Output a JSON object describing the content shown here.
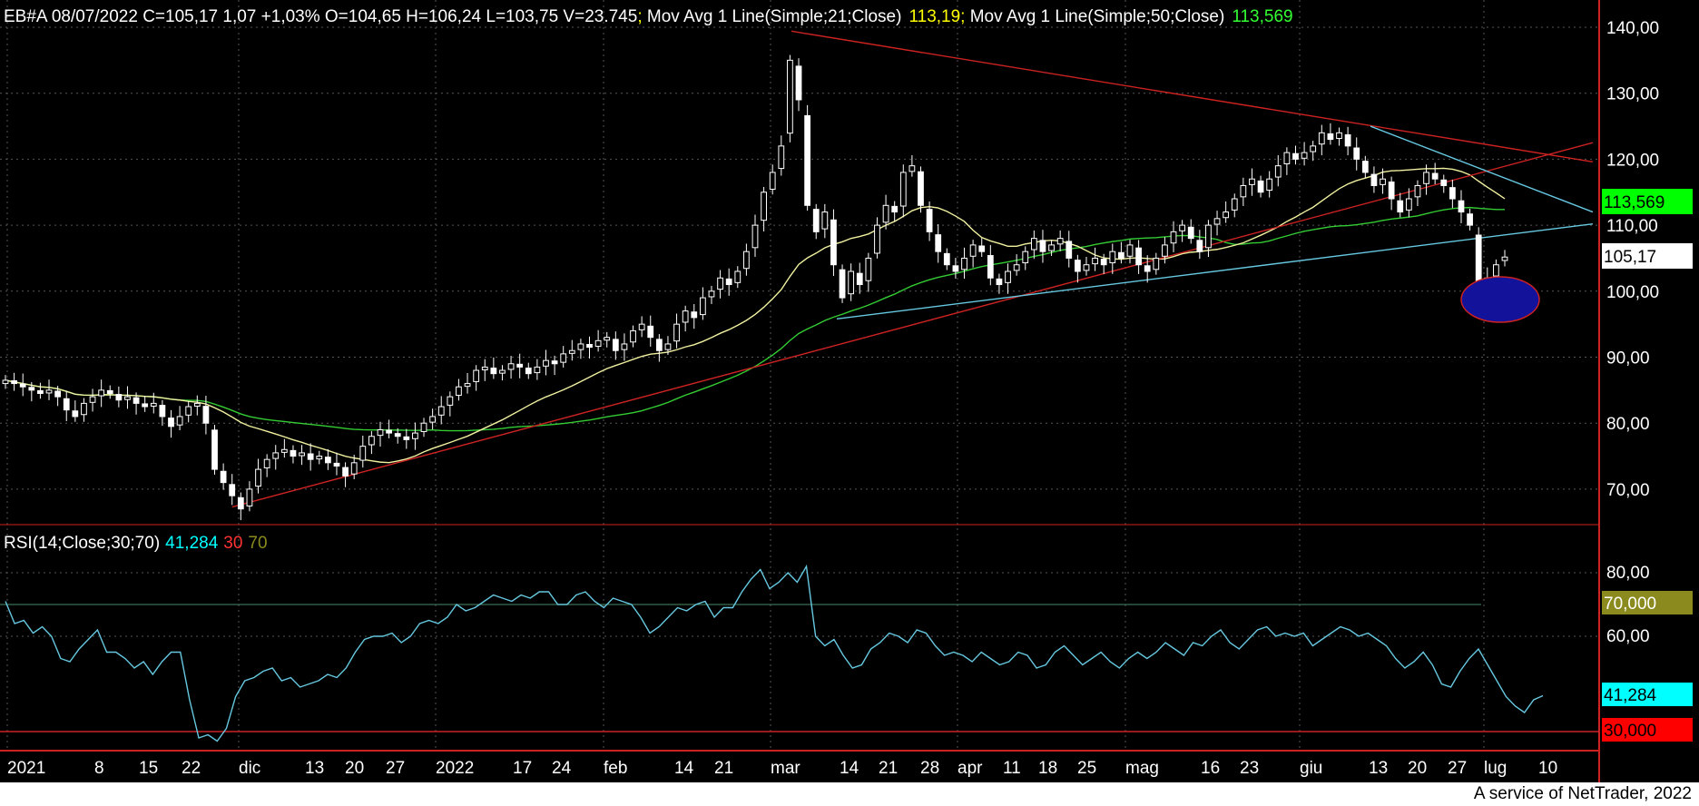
{
  "header": {
    "symbol_line": "EB#A 08/07/2022 C=105,17 1,07 +1,03% O=104,65 H=106,24 L=103,75 V=23.745",
    "sep1": "; ",
    "ma21_label": "Mov Avg 1 Line(Simple;21;Close)",
    "ma21_value": "113,19",
    "sep2": "; ",
    "ma50_label": "Mov Avg 1 Line(Simple;50;Close)",
    "ma50_value": "113,569"
  },
  "rsi_header": {
    "label": "RSI(14;Close;30;70)",
    "value": "41,284",
    "lower": "30",
    "upper": "70"
  },
  "price_axis": {
    "ticks": [
      "140,00",
      "130,00",
      "120,00",
      "110,00",
      "100,00",
      "90,00",
      "80,00",
      "70,00"
    ],
    "ma50_box": "113,569",
    "close_box": "105,17"
  },
  "rsi_axis": {
    "ticks": [
      "80,00",
      "60,00"
    ],
    "upper_box": "70,000",
    "value_box": "41,284",
    "lower_box": "30,000"
  },
  "date_axis": [
    "2021",
    "8",
    "15",
    "22",
    "dic",
    "13",
    "20",
    "27",
    "2022",
    "17",
    "24",
    "feb",
    "14",
    "21",
    "mar",
    "14",
    "21",
    "28",
    "apr",
    "11",
    "18",
    "25",
    "mag",
    "16",
    "23",
    "giu",
    "13",
    "20",
    "27",
    "lug",
    "10"
  ],
  "footer": "A service of NetTrader, 2022",
  "colors": {
    "background": "#000000",
    "candle": "#ffffff",
    "ma21": "#f0f0a0",
    "ma50": "#33cc33",
    "trend_red": "#cc2222",
    "trend_cyan": "#66c8e0",
    "rsi": "#66c8e0",
    "rsi_upper": "#8a8a1e",
    "rsi_lower": "#ff0000",
    "ma50_box": "#00ff00",
    "rsi_value_box": "#00ffff",
    "highlight_ellipse": "#12129a"
  },
  "chart_data": [
    {
      "type": "candlestick",
      "title": "EB#A",
      "ylim": [
        64,
        142
      ],
      "y_ticks": [
        70,
        80,
        90,
        100,
        110,
        120,
        130,
        140
      ],
      "grid": true,
      "last": {
        "date": "08/07/2022",
        "open": 104.65,
        "high": 106.24,
        "low": 103.75,
        "close": 105.17,
        "volume": 23745
      },
      "close_series": [
        86.5,
        86,
        85.5,
        85,
        84.5,
        85,
        84,
        82,
        81,
        83,
        84,
        85,
        84.5,
        83.5,
        84,
        83,
        82.5,
        83,
        81,
        79.5,
        81,
        82.5,
        83,
        80,
        73,
        71,
        69,
        67,
        70,
        73,
        74.5,
        75.5,
        76,
        75,
        75.5,
        74.5,
        75,
        74,
        73.5,
        72,
        74,
        76.5,
        78,
        79,
        78.5,
        78,
        77.5,
        78.5,
        80,
        81,
        82.5,
        84,
        85.5,
        86,
        88,
        88.5,
        87.5,
        88,
        89,
        88.5,
        87.5,
        88.5,
        89.5,
        89,
        90.5,
        91,
        92,
        91.5,
        92.5,
        93,
        91,
        92,
        94,
        95,
        93,
        91,
        92,
        95,
        97,
        96,
        99,
        100,
        102,
        101,
        103,
        106,
        110,
        115,
        118,
        122,
        135,
        129,
        113,
        109,
        112,
        104,
        99,
        103,
        101,
        105,
        110,
        113,
        112,
        118,
        119,
        113,
        109,
        106,
        104,
        103,
        105,
        107,
        106,
        102,
        101,
        103,
        104,
        106,
        108,
        106,
        107,
        108,
        105,
        103,
        104,
        105,
        104,
        106,
        105,
        107,
        104,
        103,
        105,
        107,
        109,
        110,
        108,
        106,
        110,
        111,
        112,
        114,
        116,
        117,
        115,
        117,
        119,
        121,
        120,
        121,
        122,
        124,
        123,
        124,
        122,
        120,
        118,
        116,
        117,
        114,
        112,
        114,
        116,
        118,
        117,
        116,
        114,
        112,
        110,
        100,
        102,
        104,
        105.17
      ],
      "ma21_last": 113.19,
      "ma50_last": 113.569,
      "annotations": [
        "red upper trendline",
        "red lower trendline",
        "cyan support trendline",
        "cyan descending trendline",
        "blue ellipse highlight"
      ]
    },
    {
      "type": "line",
      "title": "RSI(14;Close;30;70)",
      "ylim": [
        25,
        87
      ],
      "y_ticks": [
        60,
        80
      ],
      "levels": {
        "upper": 70,
        "lower": 30
      },
      "last": 41.284,
      "values": [
        71,
        64,
        65,
        61,
        63,
        60,
        53,
        52,
        56,
        59,
        62,
        55,
        55,
        53,
        50,
        52,
        48,
        52,
        55,
        55,
        40,
        28,
        29,
        27,
        31,
        41,
        46,
        47,
        49,
        50,
        46,
        47,
        44,
        45,
        46,
        48,
        47,
        50,
        55,
        59,
        60,
        60,
        61,
        58,
        60,
        64,
        65,
        64,
        66,
        70,
        68,
        69,
        71,
        73,
        72,
        71,
        73,
        72,
        74,
        74,
        70,
        70,
        73,
        74,
        71,
        69,
        72,
        71,
        70,
        66,
        61,
        63,
        66,
        69,
        68,
        70,
        71,
        66,
        69,
        69,
        74,
        78,
        81,
        75,
        77,
        80,
        77,
        82,
        60,
        57,
        59,
        54,
        50,
        51,
        56,
        58,
        61,
        60,
        58,
        62,
        61,
        57,
        54,
        55,
        54,
        52,
        55,
        53,
        51,
        52,
        55,
        54,
        50,
        51,
        55,
        57,
        54,
        51,
        53,
        55,
        52,
        50,
        53,
        55,
        53,
        55,
        58,
        56,
        54,
        58,
        57,
        60,
        62,
        58,
        56,
        59,
        62,
        63,
        60,
        61,
        60,
        61,
        57,
        59,
        61,
        63,
        62,
        60,
        61,
        59,
        57,
        53,
        50,
        52,
        55,
        51,
        45,
        44,
        49,
        53,
        56,
        51,
        46,
        41,
        38,
        36,
        40,
        41.284
      ],
      "colors": {
        "line": "#66c8e0",
        "upper": "#8a8a1e",
        "lower": "#ff0000"
      }
    }
  ]
}
